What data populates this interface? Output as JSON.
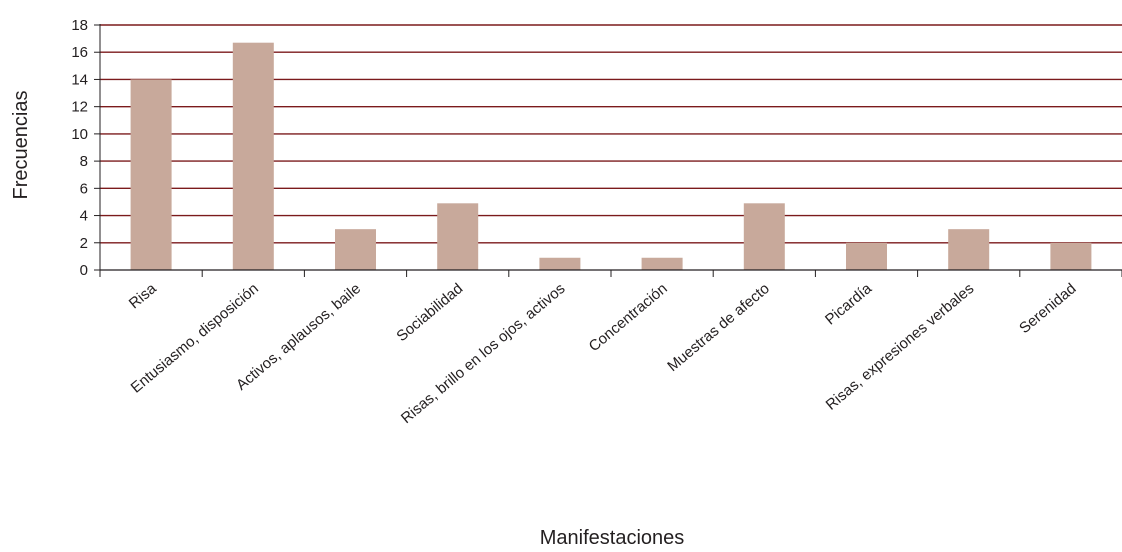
{
  "chart_data": {
    "type": "bar",
    "xlabel": "Manifestaciones",
    "ylabel": "Frecuencias",
    "categories": [
      "Risa",
      "Entusiasmo, disposición",
      "Activos, aplausos, baile",
      "Sociabilidad",
      "Risas, brillo en los ojos, activos",
      "Concentración",
      "Muestras de afecto",
      "Picardía",
      "Risas, expresiones verbales",
      "Serenidad"
    ],
    "values": [
      14,
      16.7,
      3,
      4.9,
      0.9,
      0.9,
      4.9,
      2,
      3,
      2
    ],
    "ylim": [
      0,
      18
    ],
    "yticks": [
      "0",
      "2",
      "4",
      "6",
      "8",
      "10",
      "12",
      "14",
      "16",
      "18"
    ],
    "grid": true,
    "legend": "none",
    "colors": {
      "bar": "#c8a99b",
      "grid": "#7b1a1c",
      "axis": "#231f20"
    }
  }
}
